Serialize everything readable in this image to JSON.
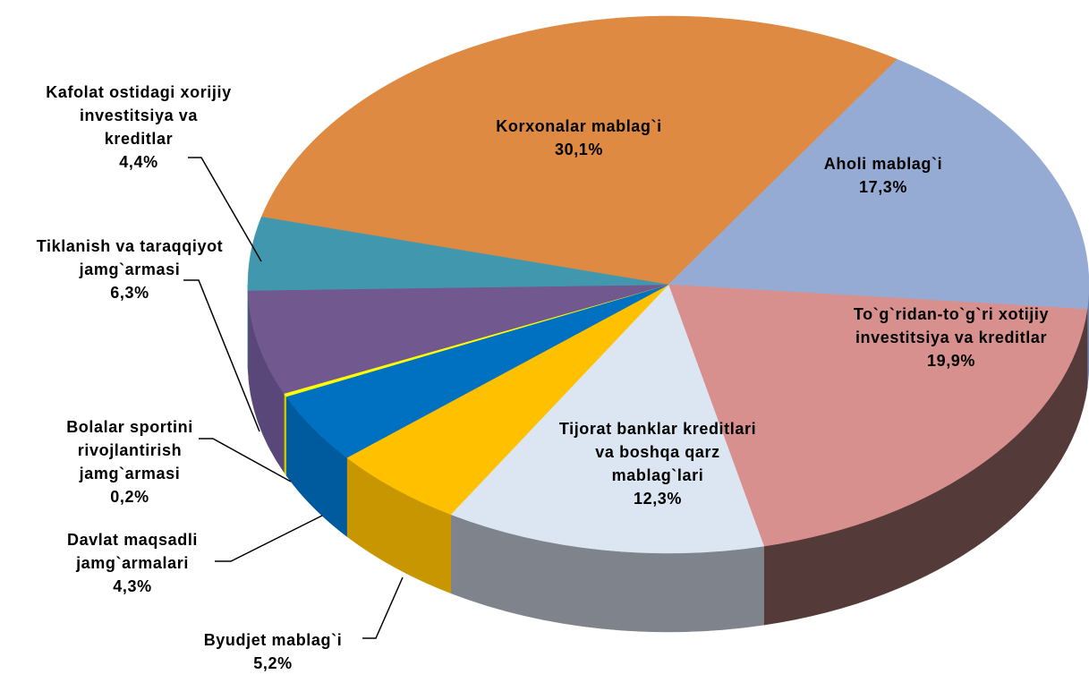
{
  "chart_data": {
    "type": "pie",
    "categories": [
      "Korxonalar mablag`i",
      "Aholi mablag`i",
      "To`g`ridan-to`g`ri xotijiy investitsiya va kreditlar",
      "Tijorat banklar kreditlari va boshqa qarz mablag`lari",
      "Byudjet mablag`i",
      "Davlat maqsadli jamg`armalari",
      "Bolalar sportini rivojlantirish jamg`armasi",
      "Tiklanish va taraqqiyot jamg`armasi",
      "Kafolat ostidagi xorijiy investitsiya va kreditlar"
    ],
    "values": [
      30.1,
      17.3,
      19.9,
      12.3,
      5.2,
      4.3,
      0.2,
      6.3,
      4.4
    ],
    "value_labels": [
      "30,1%",
      "17,3%",
      "19,9%",
      "12,3%",
      "5,2%",
      "4,3%",
      "0,2%",
      "6,3%",
      "4,4%"
    ],
    "colors": [
      "#de8a42",
      "#96abd4",
      "#d8908e",
      "#dce6f2",
      "#ffc000",
      "#0070c0",
      "#ffff00",
      "#71588f",
      "#4198ae"
    ],
    "side_colors": [
      "#b06a2c",
      "#6f82a8",
      "#553a3a",
      "#7f848c",
      "#c89600",
      "#005a9e",
      "#c8c800",
      "#5a477a",
      "#2f7384"
    ]
  }
}
